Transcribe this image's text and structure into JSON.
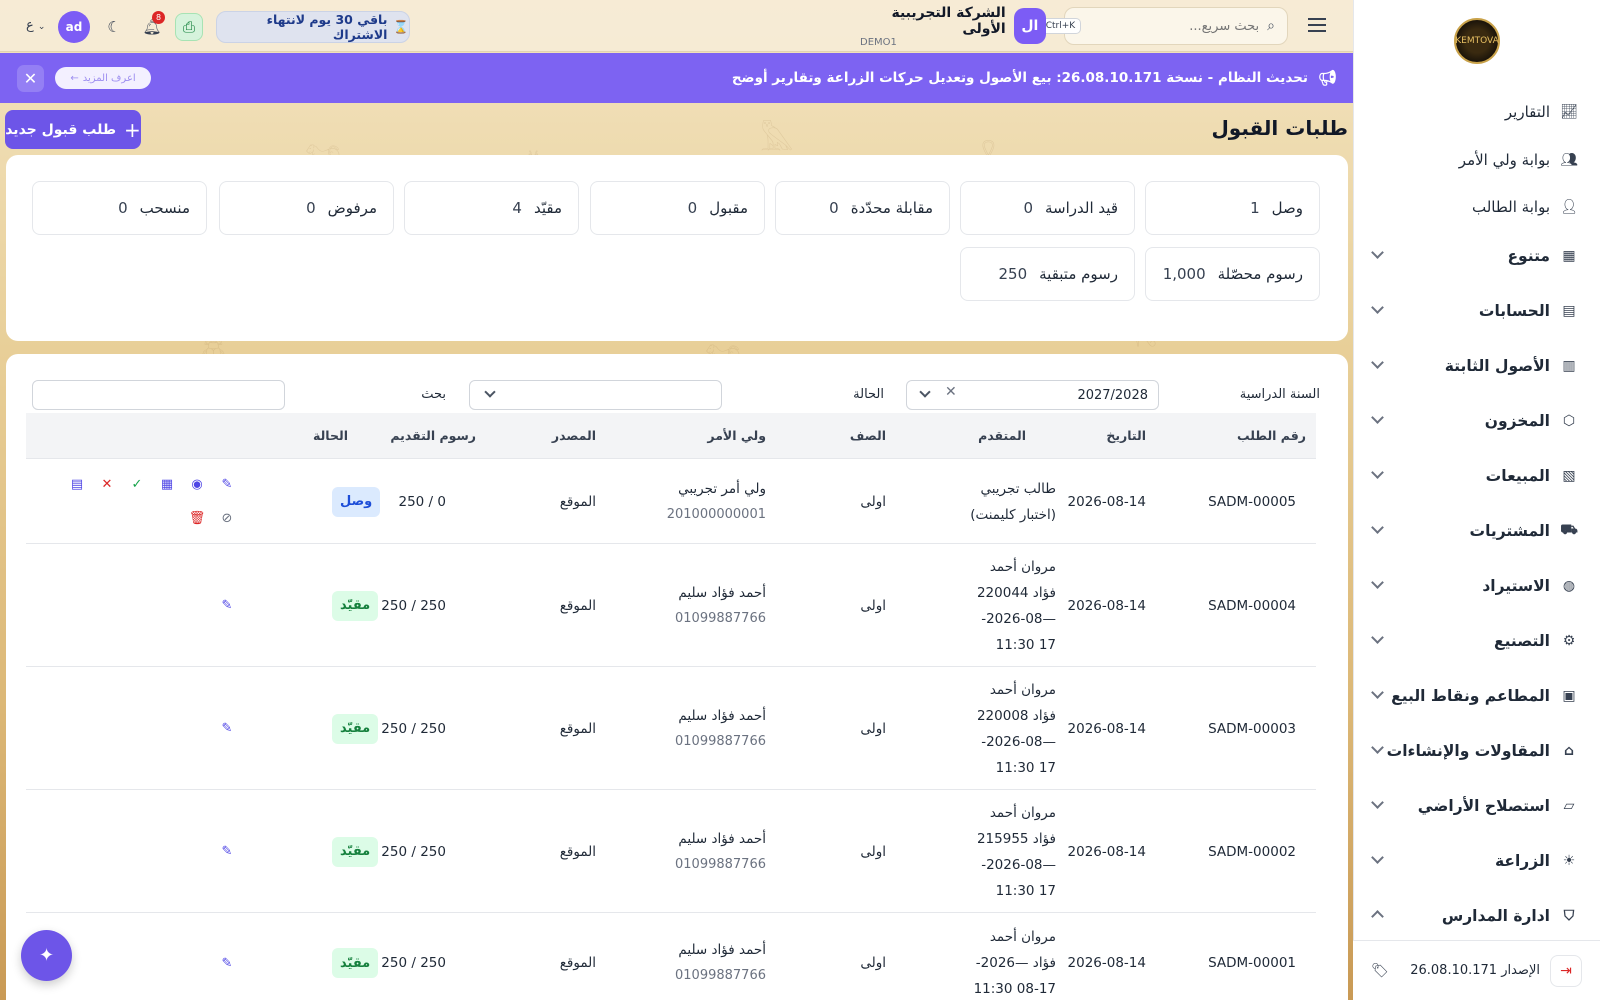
{
  "topbar": {
    "search_placeholder": "بحث سريع...",
    "search_shortcut": "Ctrl+K",
    "company_initial": "ال",
    "company_name": "الشركة التجريبية الأولى",
    "company_code": "DEMO1",
    "subscription_text": "باقي 30 يوم لانتهاء الاشتراك",
    "notification_count": "8",
    "user_initials": "ad",
    "lang": "ع"
  },
  "announcement": {
    "text": "تحديث النظام - نسخة 26.08.10.171: بيع الأصول وتعديل حركات الزراعة وتقارير أوضح",
    "learn_more": "اعرف المزيد"
  },
  "page": {
    "title": "طلبات القبول",
    "new_button": "طلب قبول جديد"
  },
  "stats": [
    {
      "label": "وصل",
      "value": "1"
    },
    {
      "label": "قيد الدراسة",
      "value": "0"
    },
    {
      "label": "مقابلة محدّدة",
      "value": "0"
    },
    {
      "label": "مقبول",
      "value": "0"
    },
    {
      "label": "مقيّد",
      "value": "4"
    },
    {
      "label": "مرفوض",
      "value": "0"
    },
    {
      "label": "منسحب",
      "value": "0"
    },
    {
      "label": "رسوم محصّلة",
      "value": "1,000"
    },
    {
      "label": "رسوم متبقية",
      "value": "250"
    }
  ],
  "filters": {
    "year_label": "السنة الدراسية",
    "year_value": "2027/2028",
    "status_label": "الحالة",
    "search_label": "بحث"
  },
  "table": {
    "headers": {
      "number": "رقم الطلب",
      "date": "التاريخ",
      "applicant": "المتقدم",
      "grade": "الصف",
      "guardian": "ولي الأمر",
      "source": "المصدر",
      "fees": "رسوم التقديم",
      "status": "الحالة"
    },
    "rows": [
      {
        "number": "SADM-00005",
        "date": "2026-08-14",
        "applicant_1": "طالب تجريبي",
        "applicant_2": "(اختبار كليمنت)",
        "applicant_3": "",
        "applicant_4": "",
        "grade": "اولى",
        "guardian": "ولي أمر تجريبي",
        "guardian_phone": "201000000001",
        "source": "الموقع",
        "fees": "0 / 250",
        "status": "وصل"
      },
      {
        "number": "SADM-00004",
        "date": "2026-08-14",
        "applicant_1": "مروان أحمد",
        "applicant_2": "فؤاد 220044",
        "applicant_3": "—2026-08-",
        "applicant_4": "17 11:30",
        "grade": "اولى",
        "guardian": "أحمد فؤاد سليم",
        "guardian_phone": "01099887766",
        "source": "الموقع",
        "fees": "250 / 250",
        "status": "مقيّد"
      },
      {
        "number": "SADM-00003",
        "date": "2026-08-14",
        "applicant_1": "مروان أحمد",
        "applicant_2": "فؤاد 220008",
        "applicant_3": "—2026-08-",
        "applicant_4": "17 11:30",
        "grade": "اولى",
        "guardian": "أحمد فؤاد سليم",
        "guardian_phone": "01099887766",
        "source": "الموقع",
        "fees": "250 / 250",
        "status": "مقيّد"
      },
      {
        "number": "SADM-00002",
        "date": "2026-08-14",
        "applicant_1": "مروان أحمد",
        "applicant_2": "فؤاد 215955",
        "applicant_3": "—2026-08-",
        "applicant_4": "17 11:30",
        "grade": "اولى",
        "guardian": "أحمد فؤاد سليم",
        "guardian_phone": "01099887766",
        "source": "الموقع",
        "fees": "250 / 250",
        "status": "مقيّد"
      },
      {
        "number": "SADM-00001",
        "date": "2026-08-14",
        "applicant_1": "مروان أحمد",
        "applicant_2": "فؤاد —2026-",
        "applicant_3": "08-17 11:30",
        "applicant_4": "",
        "grade": "اولى",
        "guardian": "أحمد فؤاد سليم",
        "guardian_phone": "01099887766",
        "source": "الموقع",
        "fees": "250 / 250",
        "status": "مقيّد"
      }
    ]
  },
  "sidebar": {
    "items": [
      {
        "label": "التقارير",
        "icon": "chart-line-icon"
      },
      {
        "label": "بوابة ولي الأمر",
        "icon": "users-icon"
      },
      {
        "label": "بوابة الطالب",
        "icon": "user-icon"
      },
      {
        "label": "متنوع",
        "icon": "grid-icon"
      },
      {
        "label": "الحسابات",
        "icon": "calculator-icon"
      },
      {
        "label": "الأصول الثابتة",
        "icon": "building-icon"
      },
      {
        "label": "المخزون",
        "icon": "box-icon"
      },
      {
        "label": "المبيعات",
        "icon": "receipt-icon"
      },
      {
        "label": "المشتريات",
        "icon": "truck-icon"
      },
      {
        "label": "الاستيراد",
        "icon": "globe-icon"
      },
      {
        "label": "التصنيع",
        "icon": "cog-icon"
      },
      {
        "label": "المطاعم ونقاط البيع",
        "icon": "store-icon"
      },
      {
        "label": "المقاولات والإنشاءات",
        "icon": "bank-icon"
      },
      {
        "label": "استصلاح الأراضي",
        "icon": "map-icon"
      },
      {
        "label": "الزراعة",
        "icon": "sun-icon"
      },
      {
        "label": "ادارة المدارس",
        "icon": "graduation-icon"
      }
    ],
    "version": "الإصدار 26.08.10.171"
  }
}
